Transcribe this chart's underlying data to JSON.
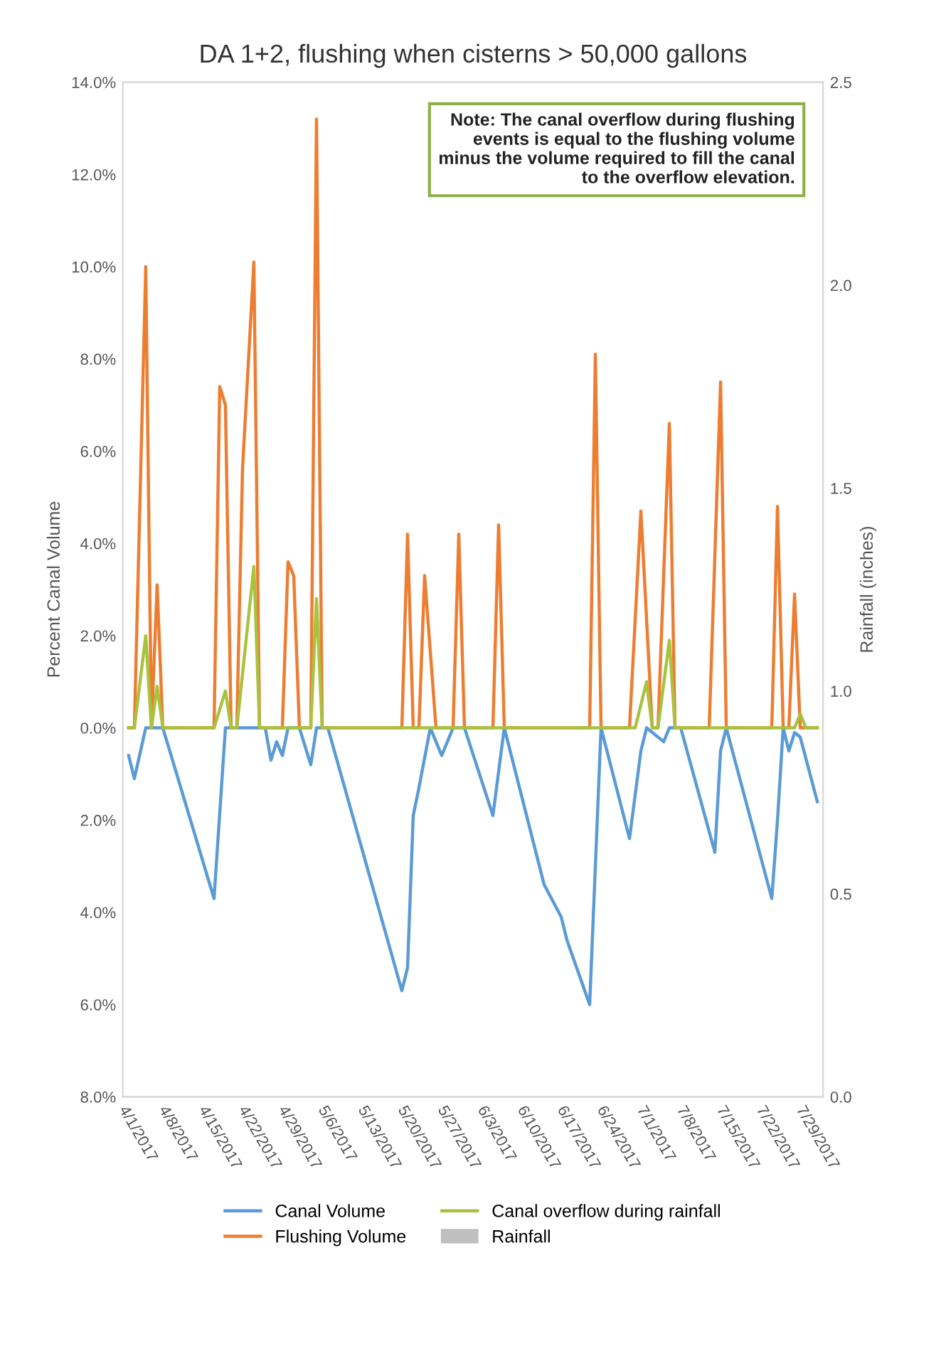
{
  "chart_data": {
    "type": "line",
    "title": "DA 1+2, flushing when cisterns > 50,000 gallons",
    "ylabel": "Percent Canal Volume",
    "y2label": "Rainfall (inches)",
    "xlim": [
      "2017-03-31",
      "2017-08-01"
    ],
    "xticks": [
      {
        "value": "2017-04-01",
        "label": "4/1/2017"
      },
      {
        "value": "2017-04-08",
        "label": "4/8/2017"
      },
      {
        "value": "2017-04-15",
        "label": "4/15/2017"
      },
      {
        "value": "2017-04-22",
        "label": "4/22/2017"
      },
      {
        "value": "2017-04-29",
        "label": "4/29/2017"
      },
      {
        "value": "2017-05-06",
        "label": "5/6/2017"
      },
      {
        "value": "2017-05-13",
        "label": "5/13/2017"
      },
      {
        "value": "2017-05-20",
        "label": "5/20/2017"
      },
      {
        "value": "2017-05-27",
        "label": "5/27/2017"
      },
      {
        "value": "2017-06-03",
        "label": "6/3/2017"
      },
      {
        "value": "2017-06-10",
        "label": "6/10/2017"
      },
      {
        "value": "2017-06-17",
        "label": "6/17/2017"
      },
      {
        "value": "2017-06-24",
        "label": "6/24/2017"
      },
      {
        "value": "2017-07-01",
        "label": "7/1/2017"
      },
      {
        "value": "2017-07-08",
        "label": "7/8/2017"
      },
      {
        "value": "2017-07-15",
        "label": "7/15/2017"
      },
      {
        "value": "2017-07-22",
        "label": "7/22/2017"
      },
      {
        "value": "2017-07-29",
        "label": "7/29/2017"
      }
    ],
    "ylim": [
      -8,
      14
    ],
    "yticks": [
      {
        "value": -8,
        "label": "8.0%"
      },
      {
        "value": -6,
        "label": "6.0%"
      },
      {
        "value": -4,
        "label": "4.0%"
      },
      {
        "value": -2,
        "label": "2.0%"
      },
      {
        "value": 0,
        "label": "0.0%"
      },
      {
        "value": 2,
        "label": "2.0%"
      },
      {
        "value": 4,
        "label": "4.0%"
      },
      {
        "value": 6,
        "label": "6.0%"
      },
      {
        "value": 8,
        "label": "8.0%"
      },
      {
        "value": 10,
        "label": "10.0%"
      },
      {
        "value": 12,
        "label": "12.0%"
      },
      {
        "value": 14,
        "label": "14.0%"
      }
    ],
    "y2lim": [
      0,
      2.5
    ],
    "y2ticks": [
      {
        "value": 0,
        "label": "0.0"
      },
      {
        "value": 0.5,
        "label": "0.5"
      },
      {
        "value": 1,
        "label": "1.0"
      },
      {
        "value": 1.5,
        "label": "1.5"
      },
      {
        "value": 2,
        "label": "2.0"
      },
      {
        "value": 2.5,
        "label": "2.5"
      }
    ],
    "legend": "bottom",
    "annotations": [
      "Note: The canal overflow during flushing events is equal to the flushing volume minus the volume required to fill the canal to the overflow elevation."
    ],
    "series": [
      {
        "name": "Canal Volume",
        "color": "#5b9bd5",
        "x": [
          "2017-04-01",
          "2017-04-02",
          "2017-04-04",
          "2017-04-07",
          "2017-04-16",
          "2017-04-18",
          "2017-04-25",
          "2017-04-26",
          "2017-04-27",
          "2017-04-28",
          "2017-04-29",
          "2017-05-01",
          "2017-05-03",
          "2017-05-04",
          "2017-05-06",
          "2017-05-19",
          "2017-05-20",
          "2017-05-21",
          "2017-05-22",
          "2017-05-24",
          "2017-05-26",
          "2017-05-28",
          "2017-05-30",
          "2017-06-04",
          "2017-06-06",
          "2017-06-13",
          "2017-06-16",
          "2017-06-17",
          "2017-06-21",
          "2017-06-23",
          "2017-06-28",
          "2017-06-30",
          "2017-07-01",
          "2017-07-04",
          "2017-07-05",
          "2017-07-07",
          "2017-07-13",
          "2017-07-14",
          "2017-07-15",
          "2017-07-23",
          "2017-07-24",
          "2017-07-25",
          "2017-07-26",
          "2017-07-27",
          "2017-07-28",
          "2017-07-31"
        ],
        "values": [
          -0.6,
          -1.1,
          0,
          0,
          -3.7,
          0,
          0,
          -0.7,
          -0.3,
          -0.6,
          0,
          0,
          -0.8,
          0,
          0,
          -5.7,
          -5.2,
          -1.9,
          -1.3,
          0,
          -0.6,
          0,
          0,
          -1.9,
          0,
          -3.4,
          -4.1,
          -4.6,
          -6.0,
          0,
          -2.4,
          -0.5,
          0,
          -0.3,
          0,
          0,
          -2.7,
          -0.5,
          0,
          -3.7,
          -2.0,
          0,
          -0.5,
          -0.1,
          -0.2,
          -1.6
        ]
      },
      {
        "name": "Flushing Volume",
        "color": "#ed7d31",
        "x": [
          "2017-04-01",
          "2017-04-02",
          "2017-04-04",
          "2017-04-05",
          "2017-04-06",
          "2017-04-07",
          "2017-04-16",
          "2017-04-17",
          "2017-04-18",
          "2017-04-19",
          "2017-04-20",
          "2017-04-21",
          "2017-04-23",
          "2017-04-24",
          "2017-04-28",
          "2017-04-29",
          "2017-04-30",
          "2017-05-01",
          "2017-05-03",
          "2017-05-04",
          "2017-05-05",
          "2017-05-19",
          "2017-05-20",
          "2017-05-21",
          "2017-05-22",
          "2017-05-23",
          "2017-05-25",
          "2017-05-28",
          "2017-05-29",
          "2017-05-30",
          "2017-06-04",
          "2017-06-05",
          "2017-06-06",
          "2017-06-21",
          "2017-06-22",
          "2017-06-23",
          "2017-06-28",
          "2017-06-30",
          "2017-07-02",
          "2017-07-03",
          "2017-07-05",
          "2017-07-06",
          "2017-07-12",
          "2017-07-14",
          "2017-07-15",
          "2017-07-23",
          "2017-07-24",
          "2017-07-25",
          "2017-07-26",
          "2017-07-27",
          "2017-07-28",
          "2017-07-31"
        ],
        "values": [
          0,
          0,
          10.0,
          0,
          3.1,
          0,
          0,
          7.4,
          7.0,
          0,
          0,
          5.6,
          10.1,
          0,
          0,
          3.6,
          3.3,
          0,
          0,
          13.2,
          0,
          0,
          4.2,
          0,
          0,
          3.3,
          0,
          0,
          4.2,
          0,
          0,
          4.4,
          0,
          0,
          8.1,
          0,
          0,
          4.7,
          0,
          0,
          6.6,
          0,
          0,
          7.5,
          0,
          0,
          4.8,
          0,
          0,
          2.9,
          0,
          0
        ]
      },
      {
        "name": "Canal overflow during rainfall",
        "color": "#a9c23f",
        "x": [
          "2017-04-01",
          "2017-04-02",
          "2017-04-04",
          "2017-04-05",
          "2017-04-06",
          "2017-04-07",
          "2017-04-16",
          "2017-04-18",
          "2017-04-19",
          "2017-04-20",
          "2017-04-23",
          "2017-04-24",
          "2017-05-03",
          "2017-05-04",
          "2017-05-05",
          "2017-06-29",
          "2017-07-01",
          "2017-07-02",
          "2017-07-03",
          "2017-07-05",
          "2017-07-06",
          "2017-07-27",
          "2017-07-28",
          "2017-07-29",
          "2017-07-31"
        ],
        "values": [
          0,
          0,
          2.0,
          0,
          0.9,
          0,
          0,
          0.8,
          0,
          0,
          3.5,
          0,
          0,
          2.8,
          0,
          0,
          1.0,
          0,
          0,
          1.9,
          0,
          0,
          0.3,
          0,
          0
        ]
      },
      {
        "name": "Rainfall",
        "color": "#bfbfbf",
        "type": "bar"
      }
    ]
  }
}
